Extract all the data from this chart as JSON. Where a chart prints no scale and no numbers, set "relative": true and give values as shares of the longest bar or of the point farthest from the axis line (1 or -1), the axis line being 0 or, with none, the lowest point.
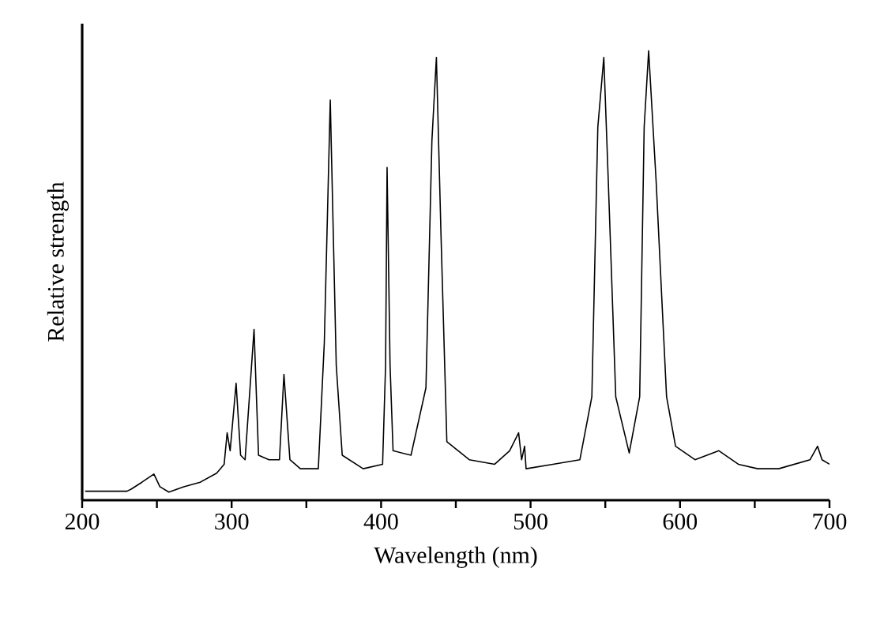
{
  "chart_data": {
    "type": "line",
    "relative": true,
    "xlabel": "Wavelength (nm)",
    "ylabel": "Relative strength",
    "xlim": [
      200,
      700
    ],
    "xticks": [
      200,
      {
        "value": 250,
        "label": null
      },
      300,
      {
        "value": 350,
        "label": null
      },
      400,
      {
        "value": 450,
        "label": null
      },
      500,
      {
        "value": 550,
        "label": null
      },
      600,
      {
        "value": 650,
        "label": null
      },
      700
    ],
    "marker": "none",
    "line_style": "solid",
    "series": [
      {
        "color": "#000000",
        "x": [
          202,
          215,
          230,
          233,
          240,
          248,
          252,
          258,
          268,
          279,
          290,
          295,
          297,
          299,
          303,
          306,
          309,
          315,
          318,
          325,
          332,
          335,
          339,
          346,
          358,
          362,
          366,
          370,
          374,
          388,
          401,
          403,
          404,
          406,
          408,
          420,
          430,
          434,
          437,
          440,
          444,
          459,
          476,
          486,
          492,
          494,
          496,
          497,
          515,
          533,
          541,
          545,
          549,
          552,
          557,
          566,
          573,
          576,
          579,
          584,
          591,
          597,
          610,
          626,
          639,
          652,
          666,
          687,
          692,
          695,
          700
        ],
        "values": [
          0.02,
          0.02,
          0.02,
          0.025,
          0.04,
          0.058,
          0.03,
          0.018,
          0.03,
          0.04,
          0.06,
          0.08,
          0.15,
          0.11,
          0.26,
          0.1,
          0.09,
          0.38,
          0.1,
          0.09,
          0.09,
          0.28,
          0.09,
          0.07,
          0.07,
          0.35,
          0.89,
          0.3,
          0.1,
          0.07,
          0.08,
          0.3,
          0.74,
          0.3,
          0.11,
          0.1,
          0.25,
          0.8,
          0.985,
          0.6,
          0.13,
          0.09,
          0.08,
          0.11,
          0.15,
          0.09,
          0.12,
          0.07,
          0.08,
          0.09,
          0.23,
          0.83,
          0.985,
          0.71,
          0.23,
          0.105,
          0.23,
          0.83,
          1.0,
          0.71,
          0.23,
          0.12,
          0.09,
          0.11,
          0.08,
          0.07,
          0.07,
          0.09,
          0.12,
          0.09,
          0.08
        ]
      }
    ]
  }
}
